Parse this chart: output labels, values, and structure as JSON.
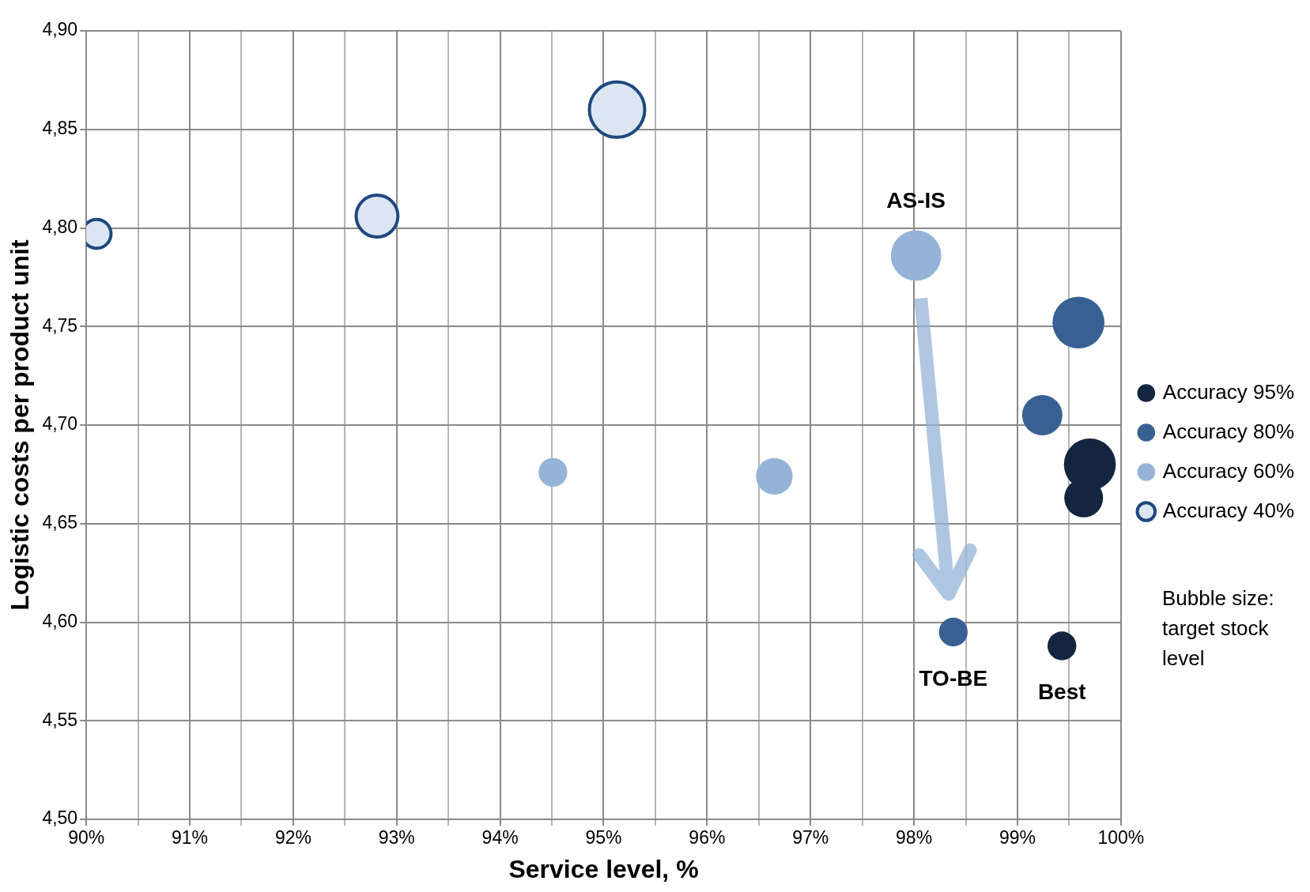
{
  "chart_data": {
    "type": "bubble",
    "xlabel": "Service level, %",
    "ylabel": "Logistic costs per product unit",
    "xlim": [
      90,
      100
    ],
    "ylim": [
      4.5,
      4.9
    ],
    "xticks": [
      {
        "value": 90,
        "label": "90%"
      },
      {
        "value": 90.5,
        "label": null
      },
      {
        "value": 91,
        "label": "91%"
      },
      {
        "value": 91.5,
        "label": null
      },
      {
        "value": 92,
        "label": "92%"
      },
      {
        "value": 92.5,
        "label": null
      },
      {
        "value": 93,
        "label": "93%"
      },
      {
        "value": 93.5,
        "label": null
      },
      {
        "value": 94,
        "label": "94%"
      },
      {
        "value": 94.5,
        "label": null
      },
      {
        "value": 95,
        "label": "95%"
      },
      {
        "value": 95.5,
        "label": null
      },
      {
        "value": 96,
        "label": "96%"
      },
      {
        "value": 96.5,
        "label": null
      },
      {
        "value": 97,
        "label": "97%"
      },
      {
        "value": 97.5,
        "label": null
      },
      {
        "value": 98,
        "label": "98%"
      },
      {
        "value": 98.5,
        "label": null
      },
      {
        "value": 99,
        "label": "99%"
      },
      {
        "value": 99.5,
        "label": null
      },
      {
        "value": 100,
        "label": "100%"
      }
    ],
    "yticks": [
      {
        "value": 4.5,
        "label": "4,50"
      },
      {
        "value": 4.55,
        "label": "4,55"
      },
      {
        "value": 4.6,
        "label": "4,60"
      },
      {
        "value": 4.65,
        "label": "4,65"
      },
      {
        "value": 4.7,
        "label": "4,70"
      },
      {
        "value": 4.75,
        "label": "4,75"
      },
      {
        "value": 4.8,
        "label": "4,80"
      },
      {
        "value": 4.85,
        "label": "4,85"
      },
      {
        "value": 4.9,
        "label": "4,90"
      }
    ],
    "grid": true,
    "legend": "right",
    "series": [
      {
        "name": "Accuracy 95%",
        "color": "#13253f",
        "x": [
          99.7,
          99.64,
          99.43
        ],
        "values": [
          4.68,
          4.663,
          4.588
        ],
        "sizes": [
          0.88,
          0.49,
          0.27
        ]
      },
      {
        "name": "Accuracy 80%",
        "color": "#386092",
        "x": [
          99.59,
          99.24,
          98.38
        ],
        "values": [
          4.752,
          4.705,
          4.595
        ],
        "sizes": [
          0.88,
          0.53,
          0.27
        ]
      },
      {
        "name": "Accuracy 60%",
        "color": "#95b3d7",
        "x": [
          98.02,
          94.51,
          96.65
        ],
        "values": [
          4.786,
          4.676,
          4.674
        ],
        "sizes": [
          0.83,
          0.27,
          0.44
        ]
      },
      {
        "name": "Accuracy 40%",
        "color": "#dce6f2",
        "x": [
          90.1,
          92.81,
          95.13
        ],
        "values": [
          4.797,
          4.806,
          4.86
        ],
        "sizes": [
          0.27,
          0.57,
          1
        ]
      }
    ],
    "annotations": [
      {
        "text": "AS-IS",
        "x": 98.02,
        "y": 4.786
      },
      {
        "text": "TO-BE",
        "x": 98.38,
        "y": 4.595
      },
      {
        "text": "Best",
        "x": 99.43,
        "y": 4.588
      },
      "Bubble size: target stock level"
    ]
  }
}
